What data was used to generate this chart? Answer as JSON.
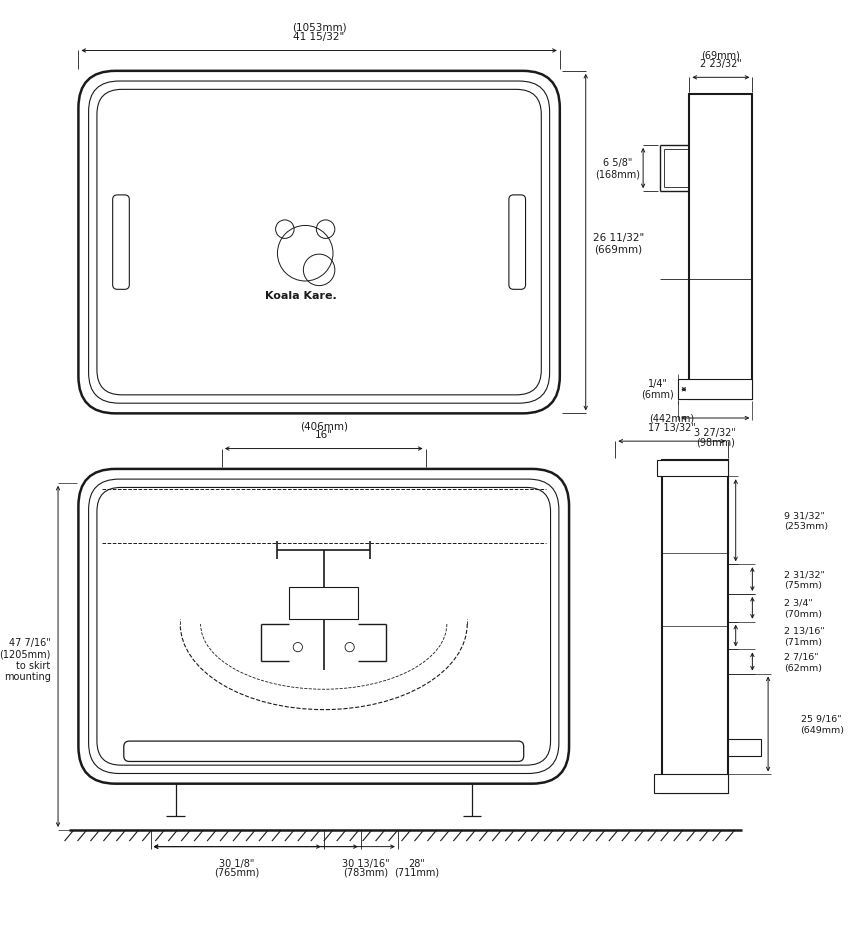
{
  "bg_color": "#ffffff",
  "line_color": "#1a1a1a",
  "dims": {
    "top_width_label": [
      "41 15/32\"",
      "(1053mm)"
    ],
    "top_height_label": [
      "26 11/32\"",
      "(669mm)"
    ],
    "side_top_width_label": [
      "2 23/32\"",
      "(69mm)"
    ],
    "side_upper_height_label": [
      "6 5/8\"",
      "(168mm)"
    ],
    "side_thin_label": [
      "1/4\"",
      "(6mm)"
    ],
    "side_bottom_label": [
      "3 27/32\"",
      "(98mm)"
    ],
    "bottom_center_label": [
      "16\"",
      "(406mm)"
    ],
    "bottom_r1_label": [
      "9 31/32\"",
      "(253mm)"
    ],
    "bottom_r2_label": [
      "2 31/32\"",
      "(75mm)"
    ],
    "bottom_r3_label": [
      "2 3/4\"",
      "(70mm)"
    ],
    "bottom_r4_label": [
      "2 13/16\"",
      "(71mm)"
    ],
    "bottom_r5_label": [
      "2 7/16\"",
      "(62mm)"
    ],
    "bottom_r6_label": [
      "25 9/16\"",
      "(649mm)"
    ],
    "bottom_side_label": [
      "17 13/32\"",
      "(442mm)"
    ],
    "bottom_left_label": [
      "47 7/16\"",
      "(1205mm)",
      "to skirt",
      "mounting"
    ],
    "bottom_d1_label": [
      "30 1/8\"",
      "(765mm)"
    ],
    "bottom_d2_label": [
      "30 13/16\"",
      "(783mm)"
    ],
    "bottom_d3_label": [
      "28\"",
      "(711mm)"
    ]
  }
}
